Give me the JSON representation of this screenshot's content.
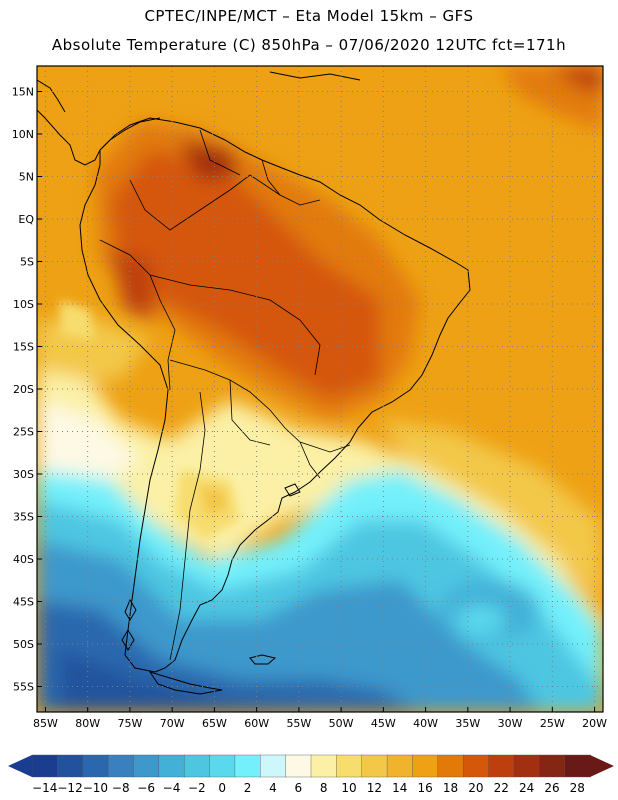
{
  "header": {
    "line1": "CPTEC/INPE/MCT –  Eta Model 15km – GFS",
    "line2": "Absolute Temperature (C) 850hPa – 07/06/2020 12UTC fct=171h"
  },
  "map": {
    "lon_range": [
      -86,
      -19
    ],
    "lat_range": [
      -58,
      18
    ],
    "lat_labels": [
      "15N",
      "10N",
      "5N",
      "EQ",
      "5S",
      "10S",
      "15S",
      "20S",
      "25S",
      "30S",
      "35S",
      "40S",
      "45S",
      "50S",
      "55S"
    ],
    "lon_labels": [
      "85W",
      "80W",
      "75W",
      "70W",
      "65W",
      "60W",
      "55W",
      "50W",
      "45W",
      "40W",
      "35W",
      "30W",
      "25W",
      "20W"
    ],
    "gridlines": "dotted"
  },
  "colorbar": {
    "labels": [
      "-14",
      "-12",
      "-10",
      "-8",
      "-6",
      "-4",
      "-2",
      "0",
      "2",
      "4",
      "6",
      "8",
      "10",
      "12",
      "14",
      "16",
      "18",
      "20",
      "22",
      "24",
      "26",
      "28"
    ],
    "colors": [
      "#1b3d8f",
      "#22529d",
      "#2b67ad",
      "#3a80bf",
      "#3e98cc",
      "#43b0d8",
      "#4ec6e2",
      "#5ad8ee",
      "#73f0fb",
      "#cdf7fb",
      "#fdf9e4",
      "#fbf0a6",
      "#f7dd6e",
      "#f3c848",
      "#f0b32b",
      "#eea114",
      "#e27a0a",
      "#d5570a",
      "#bd3f0d",
      "#a12f10",
      "#852513",
      "#6a1a16"
    ]
  }
}
